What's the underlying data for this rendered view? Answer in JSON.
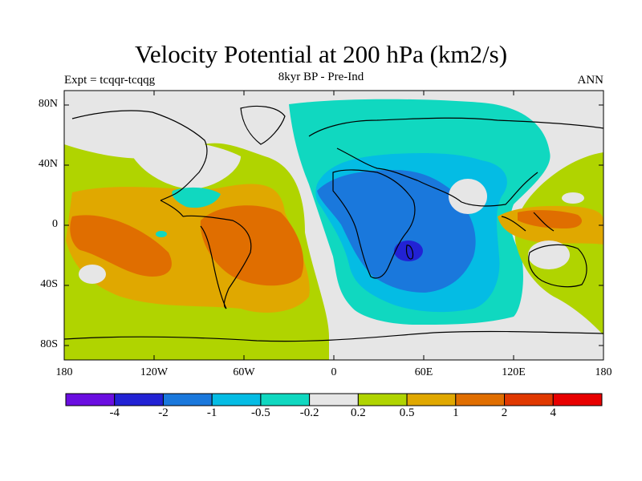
{
  "title": "Velocity Potential at 200 hPa (km2/s)",
  "left_label": "Expt = tcqqr-tcqqg",
  "center_label": "8kyr BP - Pre-Ind",
  "right_label": "ANN",
  "lat_ticks": [
    "80N",
    "40N",
    "0",
    "40S",
    "80S"
  ],
  "lon_ticks": [
    "180",
    "120W",
    "60W",
    "0",
    "60E",
    "120E",
    "180"
  ],
  "colorbar": {
    "colors": [
      "#6a0ee0",
      "#2222d4",
      "#1a78dc",
      "#04bce4",
      "#10d8c0",
      "#e6e6e6",
      "#b0d400",
      "#e0a800",
      "#e06e00",
      "#e03800",
      "#e80000"
    ],
    "labels": [
      "-4",
      "-2",
      "-1",
      "-0.5",
      "-0.2",
      "0.2",
      "0.5",
      "1",
      "2",
      "4"
    ]
  }
}
